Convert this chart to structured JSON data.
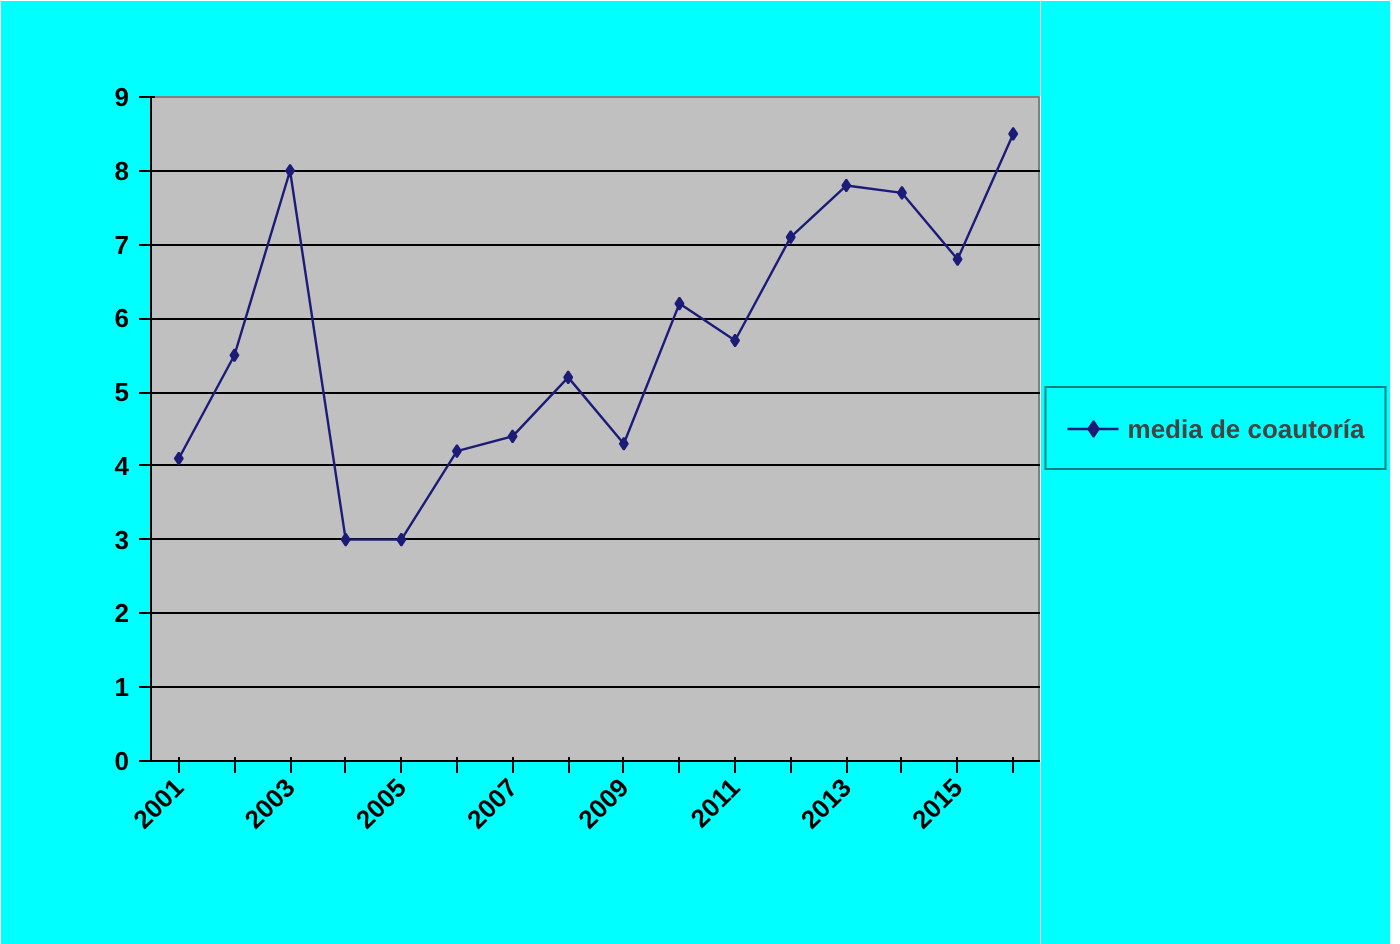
{
  "chart_data": {
    "type": "line",
    "categories": [
      "2001",
      null,
      "2003",
      null,
      "2005",
      null,
      "2007",
      null,
      "2009",
      null,
      "2011",
      null,
      "2013",
      null,
      "2015",
      null
    ],
    "series": [
      {
        "name": "media de coautoría",
        "color": "#1c1c78",
        "values": [
          4.1,
          5.5,
          8.0,
          3.0,
          3.0,
          4.2,
          4.4,
          5.2,
          4.3,
          6.2,
          5.7,
          7.1,
          7.8,
          7.7,
          6.8,
          8.5
        ]
      }
    ],
    "ylim": [
      0,
      9
    ],
    "yticks": [
      0,
      1,
      2,
      3,
      4,
      5,
      6,
      7,
      8,
      9
    ],
    "grid": "y",
    "legend": "right",
    "marker": "diamond",
    "line_style": "solid"
  }
}
